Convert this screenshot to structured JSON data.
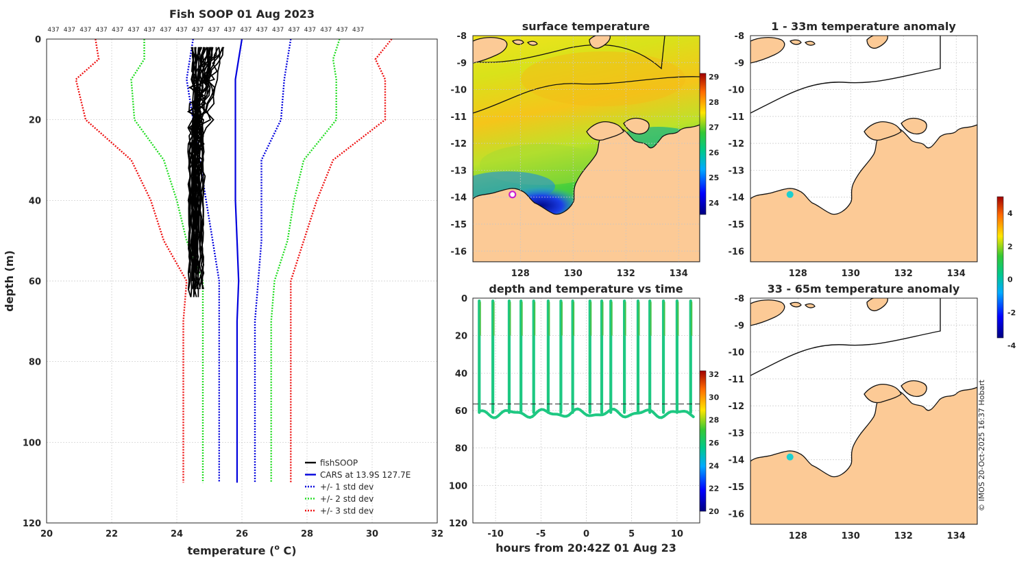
{
  "chart_data": [
    {
      "id": "profile",
      "type": "line",
      "title": "Fish SOOP 01 Aug 2023",
      "xlabel": "temperature (",
      "xlabel_sup": "o",
      "xlabel_tail": " C)",
      "ylabel": "depth (m)",
      "xlim": [
        20,
        32
      ],
      "ylim": [
        0,
        120
      ],
      "xticks": [
        "20",
        "22",
        "24",
        "26",
        "28",
        "30",
        "32"
      ],
      "yticks": [
        "0",
        "20",
        "40",
        "60",
        "80",
        "100",
        "120"
      ],
      "profile_count_label": "437",
      "profile_count_repeat": 20,
      "depth": [
        0,
        5,
        10,
        20,
        30,
        40,
        50,
        60,
        70,
        80,
        90,
        100,
        110
      ],
      "series": [
        {
          "name": "fishSOOP",
          "color": "#000000",
          "style": "solid"
        },
        {
          "name": "CARS at 13.9S 127.7E",
          "color": "#0000dd",
          "style": "solid",
          "values": [
            26.0,
            25.9,
            25.8,
            25.8,
            25.8,
            25.8,
            25.85,
            25.9,
            25.85,
            25.85,
            25.85,
            25.85,
            25.85
          ]
        },
        {
          "name": "+/- 1 std dev",
          "color": "#0000dd",
          "style": "dotted",
          "low": [
            24.5,
            24.4,
            24.3,
            24.5,
            24.7,
            24.9,
            25.1,
            25.3,
            25.3,
            25.3,
            25.3,
            25.3,
            25.3
          ],
          "high": [
            27.5,
            27.4,
            27.3,
            27.2,
            26.6,
            26.6,
            26.6,
            26.5,
            26.4,
            26.4,
            26.4,
            26.4,
            26.4
          ]
        },
        {
          "name": "+/- 2 std dev",
          "color": "#22dd22",
          "style": "dotted",
          "low": [
            23.0,
            23.0,
            22.6,
            22.7,
            23.6,
            24.0,
            24.3,
            24.8,
            24.8,
            24.8,
            24.8,
            24.8,
            24.8
          ],
          "high": [
            29.0,
            28.8,
            28.9,
            28.9,
            27.9,
            27.6,
            27.4,
            27.0,
            26.9,
            26.9,
            26.9,
            26.9,
            26.9
          ]
        },
        {
          "name": "+/- 3 std dev",
          "color": "#ee1111",
          "style": "dotted",
          "low": [
            21.5,
            21.6,
            20.9,
            21.2,
            22.6,
            23.2,
            23.6,
            24.3,
            24.2,
            24.2,
            24.2,
            24.2,
            24.2
          ],
          "high": [
            30.6,
            30.1,
            30.4,
            30.4,
            28.8,
            28.3,
            27.9,
            27.5,
            27.5,
            27.5,
            27.5,
            27.5,
            27.5
          ]
        }
      ]
    },
    {
      "id": "sst",
      "type": "heatmap",
      "title": "surface temperature",
      "xticks": [
        "128",
        "130",
        "132",
        "134"
      ],
      "yticks": [
        "-8",
        "-9",
        "-10",
        "-11",
        "-12",
        "-13",
        "-14",
        "-15",
        "-16"
      ],
      "colorbar_ticks": [
        "29",
        "28",
        "27",
        "26",
        "25",
        "24"
      ],
      "marker": {
        "lon": 127.7,
        "lat": -13.9,
        "color": "#cc22cc"
      }
    },
    {
      "id": "time",
      "type": "scatter",
      "title": "depth and temperature vs time",
      "xlabel": "hours from 20:42Z 01 Aug 23",
      "xticks": [
        "-10",
        "-5",
        "0",
        "5",
        "10"
      ],
      "yticks": [
        "0",
        "20",
        "40",
        "60",
        "80",
        "100",
        "120"
      ],
      "xlim": [
        -12.5,
        12.5
      ],
      "ylim": [
        0,
        120
      ],
      "reference_depth": 56.5,
      "dive_hours": [
        -11.8,
        -10.3,
        -8.5,
        -7.2,
        -5.8,
        -4.2,
        -2.8,
        -1.5,
        0.4,
        1.7,
        2.7,
        4.2,
        5.7,
        7.0,
        8.5,
        10.0,
        11.5
      ],
      "colorbar_ticks": [
        "32",
        "30",
        "28",
        "26",
        "24",
        "22",
        "20"
      ]
    },
    {
      "id": "anom1",
      "type": "heatmap",
      "title": "1 - 33m temperature anomaly",
      "xticks": [
        "128",
        "130",
        "132",
        "134"
      ],
      "yticks": [
        "-8",
        "-9",
        "-10",
        "-11",
        "-12",
        "-13",
        "-14",
        "-15",
        "-16"
      ],
      "marker": {
        "lon": 127.7,
        "lat": -13.9,
        "color": "#1ccfcf"
      }
    },
    {
      "id": "anom2",
      "type": "heatmap",
      "title": "33 - 65m temperature anomaly",
      "xticks": [
        "128",
        "130",
        "132",
        "134"
      ],
      "yticks": [
        "-8",
        "-9",
        "-10",
        "-11",
        "-12",
        "-13",
        "-14",
        "-15",
        "-16"
      ],
      "marker": {
        "lon": 127.7,
        "lat": -13.9,
        "color": "#1ccfcf"
      },
      "colorbar_ticks": [
        "4",
        "2",
        "0",
        "-2",
        "-4"
      ]
    }
  ],
  "credit": "© IMOS 20-Oct-2025 16:37 Hobart",
  "colors": {
    "land": "#fcca96",
    "coast": "#000000",
    "grid": "#c8c8c8"
  }
}
